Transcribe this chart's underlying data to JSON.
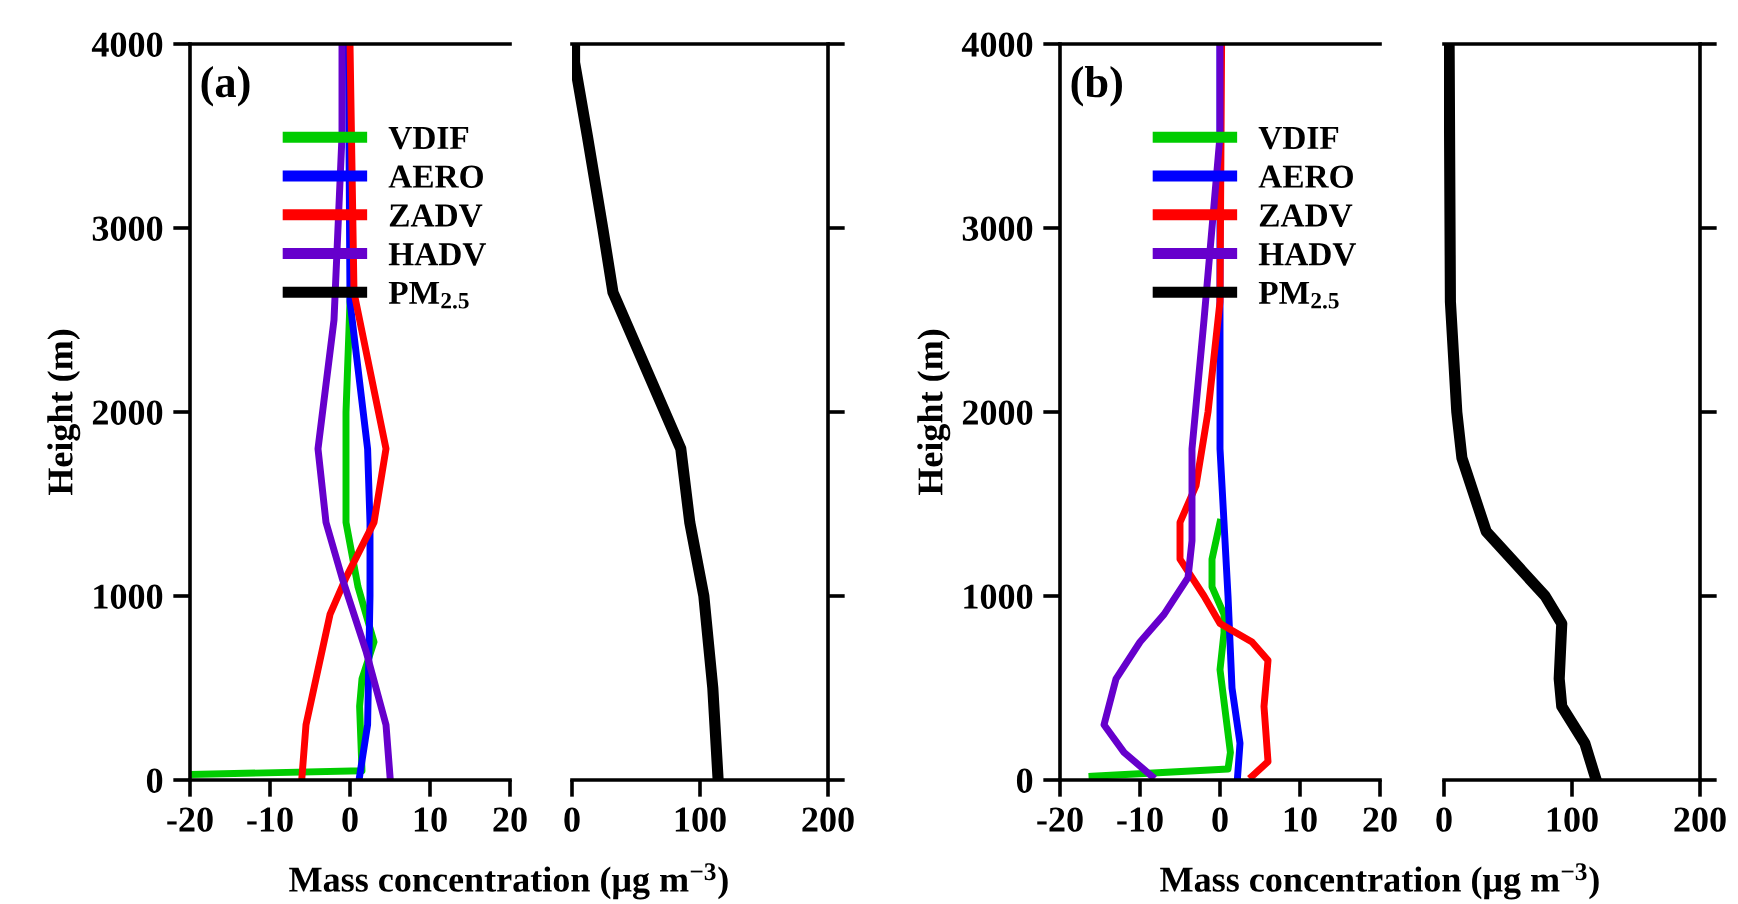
{
  "chart_data": [
    {
      "type": "line",
      "annotations": [
        "(a)"
      ],
      "xlabel": "Mass concentration (μg m$^{−3}$)",
      "ylabel": "Height (m)",
      "xlim": [
        -20,
        20
      ],
      "xticks": [
        -20,
        -10,
        0,
        10,
        20
      ],
      "ylim": [
        0,
        4000
      ],
      "yticks": [
        0,
        1000,
        2000,
        3000,
        4000
      ],
      "legend": "top right",
      "grid": false,
      "series": [
        {
          "name": "VDIF",
          "color": "#00cc00",
          "x": [
            -20,
            1.5,
            1.2,
            1.5,
            3,
            1,
            -0.5,
            -0.5,
            0
          ],
          "values": [
            30,
            50,
            400,
            550,
            750,
            1050,
            1400,
            2000,
            2600
          ]
        },
        {
          "name": "AERO",
          "color": "#0000ff",
          "x": [
            1.2,
            2.2,
            2.5,
            2.5,
            2.2,
            0,
            -0.2
          ],
          "values": [
            20,
            300,
            1000,
            1400,
            1800,
            2600,
            4000
          ]
        },
        {
          "name": "ZADV",
          "color": "#ff0000",
          "x": [
            -6,
            -5.5,
            -4,
            -2.5,
            -0.5,
            3,
            4.5,
            0.5,
            0
          ],
          "values": [
            20,
            300,
            600,
            900,
            1100,
            1400,
            1800,
            2650,
            4000
          ]
        },
        {
          "name": "HADV",
          "color": "#6600cc",
          "x": [
            5,
            4.5,
            2,
            -1,
            -3,
            -4,
            -2,
            -1,
            -1
          ],
          "values": [
            20,
            300,
            700,
            1100,
            1400,
            1800,
            2500,
            3500,
            4000
          ]
        }
      ]
    },
    {
      "type": "line",
      "xlim": [
        0,
        200
      ],
      "xticks": [
        0,
        100,
        200
      ],
      "ylim": [
        0,
        4000
      ],
      "yticks": [
        0,
        1000,
        2000,
        3000,
        4000
      ],
      "tick_labels": "x",
      "grid": false,
      "series": [
        {
          "name": "PM$_{2.5}$",
          "color": "#000000",
          "x": [
            114,
            110,
            103,
            92,
            85,
            32,
            24,
            12,
            2,
            2
          ],
          "values": [
            20,
            500,
            1000,
            1400,
            1800,
            2650,
            3000,
            3500,
            3900,
            4000
          ]
        }
      ]
    },
    {
      "type": "line",
      "annotations": [
        "(b)"
      ],
      "xlabel": "Mass concentration (μg m$^{−3}$)",
      "ylabel": "Height (m)",
      "xlim": [
        -20,
        20
      ],
      "xticks": [
        -20,
        -10,
        0,
        10,
        20
      ],
      "ylim": [
        0,
        4000
      ],
      "yticks": [
        0,
        1000,
        2000,
        3000,
        4000
      ],
      "legend": "top right",
      "grid": false,
      "series": [
        {
          "name": "VDIF",
          "color": "#00cc00",
          "x": [
            -16,
            1,
            1.3,
            0,
            0.5,
            0.5,
            -1,
            -1,
            0
          ],
          "values": [
            20,
            60,
            150,
            600,
            800,
            900,
            1050,
            1200,
            1400
          ]
        },
        {
          "name": "AERO",
          "color": "#0000ff",
          "x": [
            2.2,
            2.5,
            1.5,
            1,
            0,
            0
          ],
          "values": [
            20,
            200,
            500,
            1000,
            1800,
            4000
          ]
        },
        {
          "name": "ZADV",
          "color": "#ff0000",
          "x": [
            4,
            6,
            5.5,
            6,
            4,
            0,
            -2,
            -5,
            -5,
            -3,
            -1.5,
            0,
            0.2
          ],
          "values": [
            20,
            100,
            400,
            650,
            750,
            850,
            1000,
            1200,
            1400,
            1600,
            2000,
            2600,
            4000
          ]
        },
        {
          "name": "HADV",
          "color": "#6600cc",
          "x": [
            -8.5,
            -12,
            -14.5,
            -13,
            -10,
            -7,
            -4,
            -3.5,
            -3.5,
            -2,
            0,
            0
          ],
          "values": [
            20,
            150,
            300,
            550,
            750,
            900,
            1100,
            1300,
            1800,
            2500,
            3500,
            4000
          ]
        }
      ]
    },
    {
      "type": "line",
      "xlim": [
        0,
        200
      ],
      "xticks": [
        0,
        100,
        200
      ],
      "ylim": [
        0,
        4000
      ],
      "yticks": [
        0,
        1000,
        2000,
        3000,
        4000
      ],
      "tick_labels": "x",
      "grid": false,
      "series": [
        {
          "name": "PM$_{2.5}$",
          "color": "#000000",
          "x": [
            118,
            110,
            92,
            90,
            92,
            79,
            33,
            14,
            10,
            5,
            4
          ],
          "values": [
            20,
            200,
            400,
            550,
            850,
            1000,
            1350,
            1750,
            2000,
            2600,
            4000
          ]
        }
      ]
    }
  ]
}
